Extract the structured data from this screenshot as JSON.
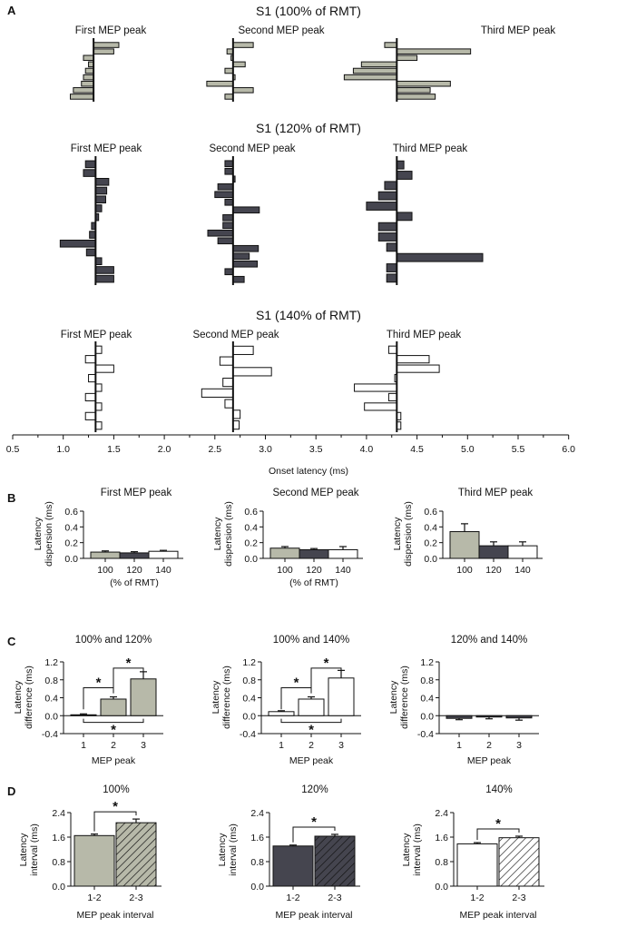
{
  "colors": {
    "grey": "#b7b9a9",
    "dark": "#45454f",
    "white": "#ffffff",
    "ink": "#111111"
  },
  "panelA": {
    "letter": "A",
    "xlabel": "Onset latency (ms)",
    "ticks": [
      0.5,
      1.0,
      1.5,
      2.0,
      2.5,
      3.0,
      3.5,
      4.0,
      4.5,
      5.0,
      5.5,
      6.0
    ],
    "tick_labels": [
      "0.5",
      "1.0",
      "1.5",
      "2.0",
      "2.5",
      "3.0",
      "3.5",
      "4.0",
      "4.5",
      "5.0",
      "5.5",
      "6.0"
    ],
    "rows": [
      {
        "title": "S1 (100% of RMT)",
        "color": "grey",
        "peaks": [
          {
            "label": "First MEP peak",
            "center": 1.3,
            "values": [
              1.55,
              1.5,
              1.2,
              1.25,
              1.22,
              1.2,
              1.18,
              1.1,
              1.07
            ]
          },
          {
            "label": "Second MEP peak",
            "center": 2.68,
            "values": [
              2.88,
              2.62,
              2.66,
              2.8,
              2.6,
              2.7,
              2.42,
              2.88,
              2.6
            ]
          },
          {
            "label": "Third MEP peak",
            "center": 4.3,
            "values": [
              4.18,
              5.03,
              4.5,
              3.95,
              3.87,
              3.78,
              4.83,
              4.63,
              4.68
            ]
          }
        ]
      },
      {
        "title": "S1 (120% of RMT)",
        "color": "dark",
        "peaks": [
          {
            "label": "First MEP peak",
            "center": 1.32,
            "values": [
              1.22,
              1.2,
              1.45,
              1.43,
              1.42,
              1.38,
              1.35,
              1.28,
              1.26,
              0.97,
              1.23,
              1.38,
              1.5,
              1.5
            ]
          },
          {
            "label": "Second MEP peak",
            "center": 2.68,
            "values": [
              2.6,
              2.6,
              2.7,
              2.53,
              2.5,
              2.6,
              2.94,
              2.58,
              2.58,
              2.43,
              2.53,
              2.93,
              2.84,
              2.92,
              2.6,
              2.79
            ]
          },
          {
            "label": "Third MEP peak",
            "center": 4.3,
            "values": [
              4.37,
              4.45,
              4.18,
              4.12,
              4.0,
              4.45,
              4.12,
              4.12,
              4.2,
              5.15,
              4.2,
              4.2
            ]
          }
        ]
      },
      {
        "title": "S1 (140% of RMT)",
        "color": "white",
        "peaks": [
          {
            "label": "First MEP peak",
            "center": 1.32,
            "values": [
              1.38,
              1.22,
              1.5,
              1.25,
              1.38,
              1.22,
              1.38,
              1.22,
              1.38
            ]
          },
          {
            "label": "Second MEP peak",
            "center": 2.68,
            "values": [
              2.88,
              2.55,
              3.06,
              2.58,
              2.37,
              2.6,
              2.75,
              2.74
            ]
          },
          {
            "label": "Third MEP peak",
            "center": 4.3,
            "values": [
              4.22,
              4.62,
              4.72,
              4.28,
              3.88,
              4.22,
              3.98,
              4.34,
              4.34
            ]
          }
        ]
      }
    ]
  },
  "panelB": {
    "letter": "B",
    "ylabel": [
      "Latency",
      "dispersion (ms)"
    ],
    "ylim": [
      0,
      0.6
    ],
    "yticks": [
      "0.0",
      "0.2",
      "0.4",
      "0.6"
    ],
    "categories": [
      "100",
      "120",
      "140"
    ],
    "xlabel": "(% of RMT)",
    "charts": [
      {
        "title": "First MEP peak",
        "values": [
          0.08,
          0.07,
          0.09
        ],
        "errors": [
          0.015,
          0.015,
          0.012
        ],
        "show_xlabel": true
      },
      {
        "title": "Second MEP peak",
        "values": [
          0.13,
          0.11,
          0.11
        ],
        "errors": [
          0.02,
          0.015,
          0.04
        ],
        "show_xlabel": true
      },
      {
        "title": "Third MEP peak",
        "values": [
          0.34,
          0.16,
          0.16
        ],
        "errors": [
          0.1,
          0.05,
          0.05
        ],
        "show_xlabel": false
      }
    ]
  },
  "panelC": {
    "letter": "C",
    "ylabel": [
      "Latency",
      "difference (ms)"
    ],
    "ylim": [
      -0.4,
      1.2
    ],
    "yticks": [
      "-0.4",
      "0.0",
      "0.4",
      "0.8",
      "1.2"
    ],
    "categories": [
      "1",
      "2",
      "3"
    ],
    "xlabel": "MEP peak",
    "star": "*",
    "charts": [
      {
        "title": "100% and 120%",
        "color": "grey",
        "values": [
          0.02,
          0.37,
          0.82
        ],
        "errors": [
          0.02,
          0.05,
          0.16
        ],
        "sig": true
      },
      {
        "title": "100% and 140%",
        "color": "white",
        "values": [
          0.09,
          0.37,
          0.84
        ],
        "errors": [
          0.02,
          0.05,
          0.17
        ],
        "sig": true
      },
      {
        "title": "120% and 140%",
        "color": "dark",
        "values": [
          -0.06,
          -0.03,
          -0.05
        ],
        "errors": [
          0.03,
          0.04,
          0.05
        ],
        "sig": false
      }
    ]
  },
  "panelD": {
    "letter": "D",
    "ylabel": [
      "Latency",
      "interval (ms)"
    ],
    "ylim": [
      0,
      2.4
    ],
    "yticks": [
      "0.0",
      "0.8",
      "1.6",
      "2.4"
    ],
    "categories": [
      "1-2",
      "2-3"
    ],
    "xlabel": "MEP peak interval",
    "star": "*",
    "charts": [
      {
        "title": "100%",
        "color": "grey",
        "values": [
          1.65,
          2.07
        ],
        "errors": [
          0.05,
          0.12
        ]
      },
      {
        "title": "120%",
        "color": "dark",
        "values": [
          1.31,
          1.63
        ],
        "errors": [
          0.03,
          0.06
        ]
      },
      {
        "title": "140%",
        "color": "white",
        "values": [
          1.38,
          1.58
        ],
        "errors": [
          0.04,
          0.05
        ]
      }
    ]
  }
}
